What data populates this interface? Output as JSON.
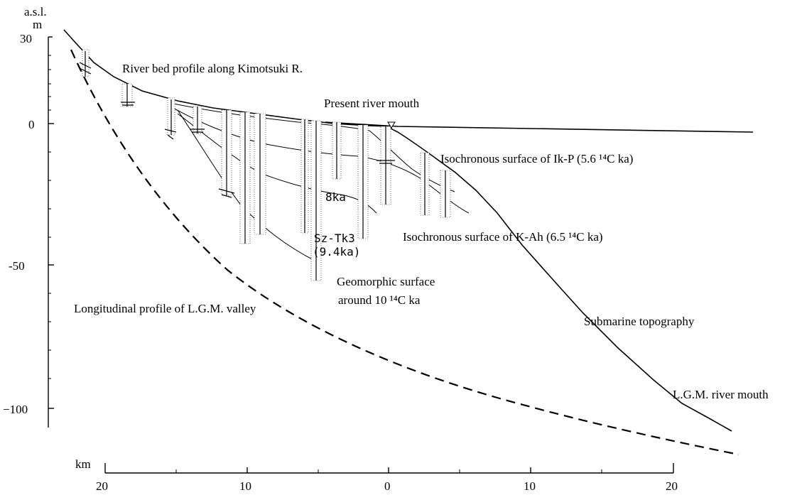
{
  "axes": {
    "y_unit_top": "a.s.l.",
    "y_unit": "m",
    "y_ticks": [
      "30",
      "0",
      "-50",
      "−100"
    ],
    "x_unit": "km",
    "x_ticks": [
      "20",
      "10",
      "0",
      "10",
      "20"
    ]
  },
  "labels": {
    "river_bed": "River bed profile along Kimotsuki R.",
    "present_mouth": "Present river mouth",
    "ikp": "Isochronous surface of Ik-P (5.6 ¹⁴C ka)",
    "kah": "Isochronous surface of K-Ah (6.5 ¹⁴C ka)",
    "ka8": "8ka",
    "sztk3_a": "Sz-Tk3",
    "sztk3_b": "(9.4ka)",
    "geomorphic_a": "Geomorphic surface",
    "geomorphic_b": "around 10 ¹⁴C ka",
    "lgm_valley": "Longitudinal profile of L.G.M. valley",
    "submarine": "Submarine topography",
    "lgm_mouth": "L.G.M. river mouth"
  }
}
